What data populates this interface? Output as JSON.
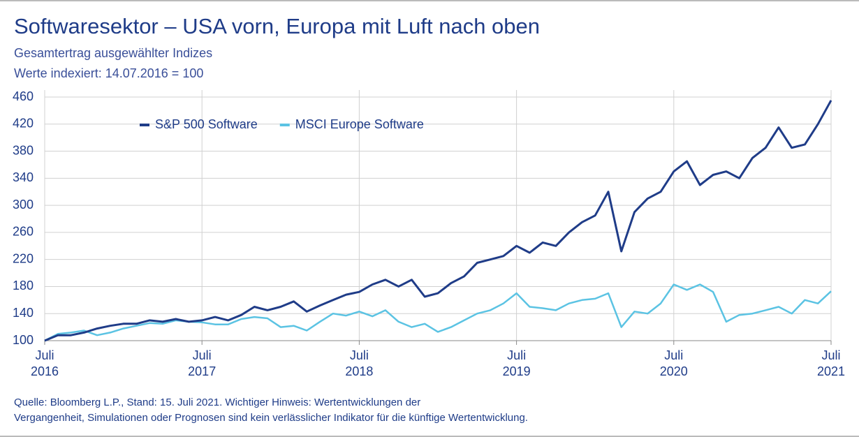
{
  "chart_data": {
    "type": "line",
    "title": "Softwaresektor – USA vorn, Europa mit Luft nach oben",
    "subtitle": "Gesamtertrag ausgewählter Indizes",
    "subtitle2": "Werte indexiert: 14.07.2016 = 100",
    "source": "Quelle: Bloomberg L.P., Stand: 15. Juli 2021. Wichtiger Hinweis: Wertentwicklungen der\nVergangenheit, Simulationen oder Prognosen sind kein verlässlicher Indikator für die künftige Wertentwicklung.",
    "x": [
      "2016-07",
      "2016-08",
      "2016-09",
      "2016-10",
      "2016-11",
      "2016-12",
      "2017-01",
      "2017-02",
      "2017-03",
      "2017-04",
      "2017-05",
      "2017-06",
      "2017-07",
      "2017-08",
      "2017-09",
      "2017-10",
      "2017-11",
      "2017-12",
      "2018-01",
      "2018-02",
      "2018-03",
      "2018-04",
      "2018-05",
      "2018-06",
      "2018-07",
      "2018-08",
      "2018-09",
      "2018-10",
      "2018-11",
      "2018-12",
      "2019-01",
      "2019-02",
      "2019-03",
      "2019-04",
      "2019-05",
      "2019-06",
      "2019-07",
      "2019-08",
      "2019-09",
      "2019-10",
      "2019-11",
      "2019-12",
      "2020-01",
      "2020-02",
      "2020-03",
      "2020-04",
      "2020-05",
      "2020-06",
      "2020-07",
      "2020-08",
      "2020-09",
      "2020-10",
      "2020-11",
      "2020-12",
      "2021-01",
      "2021-02",
      "2021-03",
      "2021-04",
      "2021-05",
      "2021-06",
      "2021-07"
    ],
    "series": [
      {
        "name": "S&P 500 Software",
        "color": "#1f3c88",
        "values": [
          100,
          108,
          108,
          112,
          118,
          122,
          125,
          125,
          130,
          128,
          132,
          128,
          130,
          135,
          130,
          138,
          150,
          145,
          150,
          158,
          143,
          152,
          160,
          168,
          172,
          183,
          190,
          180,
          190,
          165,
          170,
          185,
          195,
          215,
          220,
          225,
          240,
          230,
          245,
          240,
          260,
          275,
          285,
          320,
          232,
          290,
          310,
          320,
          350,
          365,
          330,
          345,
          350,
          340,
          370,
          385,
          415,
          385,
          390,
          420,
          455
        ]
      },
      {
        "name": "MSCI Europe Software",
        "color": "#5bc3e3",
        "values": [
          100,
          110,
          112,
          115,
          108,
          112,
          118,
          122,
          126,
          125,
          130,
          128,
          127,
          124,
          124,
          132,
          135,
          133,
          120,
          122,
          115,
          128,
          140,
          137,
          143,
          136,
          145,
          128,
          120,
          125,
          113,
          120,
          130,
          140,
          145,
          155,
          170,
          150,
          148,
          145,
          155,
          160,
          162,
          170,
          120,
          143,
          140,
          155,
          183,
          175,
          183,
          172,
          128,
          138,
          140,
          145,
          150,
          140,
          160,
          155,
          173
        ]
      }
    ],
    "xlim": [
      "2016-07",
      "2021-07"
    ],
    "xticks": [
      {
        "value": "2016-07",
        "label": "Juli\n2016"
      },
      {
        "value": "2017-07",
        "label": "Juli\n2017"
      },
      {
        "value": "2018-07",
        "label": "Juli\n2018"
      },
      {
        "value": "2019-07",
        "label": "Juli\n2019"
      },
      {
        "value": "2020-07",
        "label": "Juli\n2020"
      },
      {
        "value": "2021-07",
        "label": "Juli\n2021"
      }
    ],
    "ylim": [
      100,
      460
    ],
    "yticks": [
      100,
      140,
      180,
      220,
      260,
      300,
      340,
      380,
      420,
      460
    ],
    "grid": true,
    "legend": "top-left"
  }
}
